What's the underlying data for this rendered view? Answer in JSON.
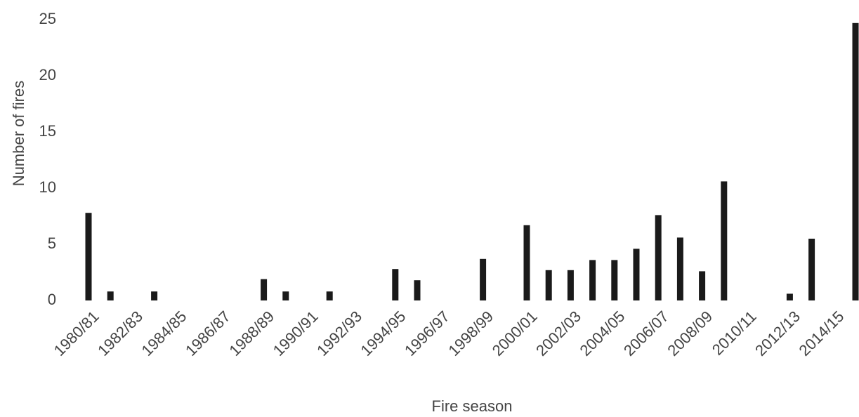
{
  "chart_data": {
    "type": "bar",
    "xlabel": "Fire season",
    "ylabel": "Number of fires",
    "categories": [
      "1980/81",
      null,
      "1982/83",
      null,
      "1984/85",
      null,
      "1986/87",
      null,
      "1988/89",
      null,
      "1990/91",
      null,
      "1992/93",
      null,
      "1994/95",
      null,
      "1996/97",
      null,
      "1998/99",
      null,
      "2000/01",
      null,
      "2002/03",
      null,
      "2004/05",
      null,
      "2006/07",
      null,
      "2008/09",
      null,
      "2010/11",
      null,
      "2012/13",
      null,
      "2014/15",
      null
    ],
    "values": [
      7.8,
      0.8,
      0,
      0.8,
      0,
      0,
      0,
      0,
      1.9,
      0.8,
      0,
      0.8,
      0,
      0,
      2.8,
      1.8,
      0,
      0,
      3.7,
      0,
      6.7,
      2.7,
      2.7,
      3.6,
      3.6,
      4.6,
      7.6,
      5.6,
      2.6,
      10.6,
      0,
      0,
      0.6,
      5.5,
      0,
      24.7
    ],
    "color": "#1a1a1a",
    "ylim": [
      0,
      25
    ],
    "yticks": [
      0,
      5,
      10,
      15,
      20,
      25
    ],
    "grid": false
  }
}
